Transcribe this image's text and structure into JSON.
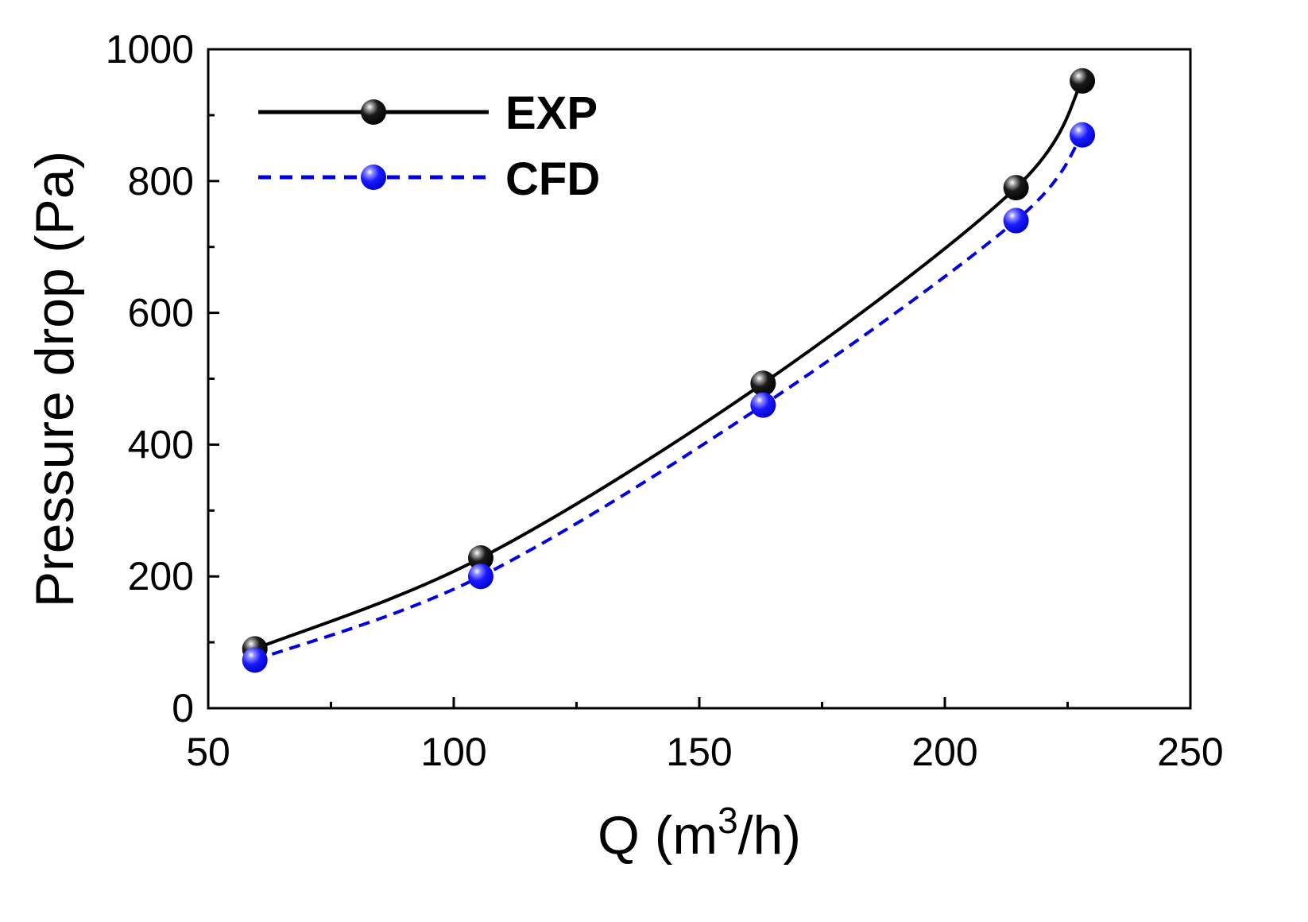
{
  "chart_data": {
    "type": "line",
    "title": "",
    "xlabel": "Q (m",
    "xlabel_sup": "3",
    "xlabel_tail": "/h)",
    "ylabel": "Pressure drop (Pa)",
    "xlim": [
      50,
      250
    ],
    "ylim": [
      0,
      1000
    ],
    "x_major_ticks": [
      50,
      100,
      150,
      200,
      250
    ],
    "x_tick_labels": [
      "50",
      "100",
      "150",
      "200",
      "250"
    ],
    "x_minor_ticks": [
      75,
      125,
      175,
      225
    ],
    "y_major_ticks": [
      0,
      200,
      400,
      600,
      800,
      1000
    ],
    "y_tick_labels": [
      "0",
      "200",
      "400",
      "600",
      "800",
      "1000"
    ],
    "y_minor_ticks": [
      100,
      300,
      500,
      700,
      900
    ],
    "grid": false,
    "legend_position": "top-left",
    "series": [
      {
        "name": "EXP",
        "x": [
          59.5,
          105.5,
          163,
          214.5,
          228
        ],
        "values": [
          90,
          228,
          493,
          790,
          952
        ],
        "color": "#000000",
        "line_style": "solid",
        "marker": "sphere"
      },
      {
        "name": "CFD",
        "x": [
          59.5,
          105.5,
          163,
          214.5,
          228
        ],
        "values": [
          73,
          200,
          460,
          740,
          870
        ],
        "color": "#0000e0",
        "line_style": "dashed",
        "marker": "sphere"
      }
    ]
  }
}
